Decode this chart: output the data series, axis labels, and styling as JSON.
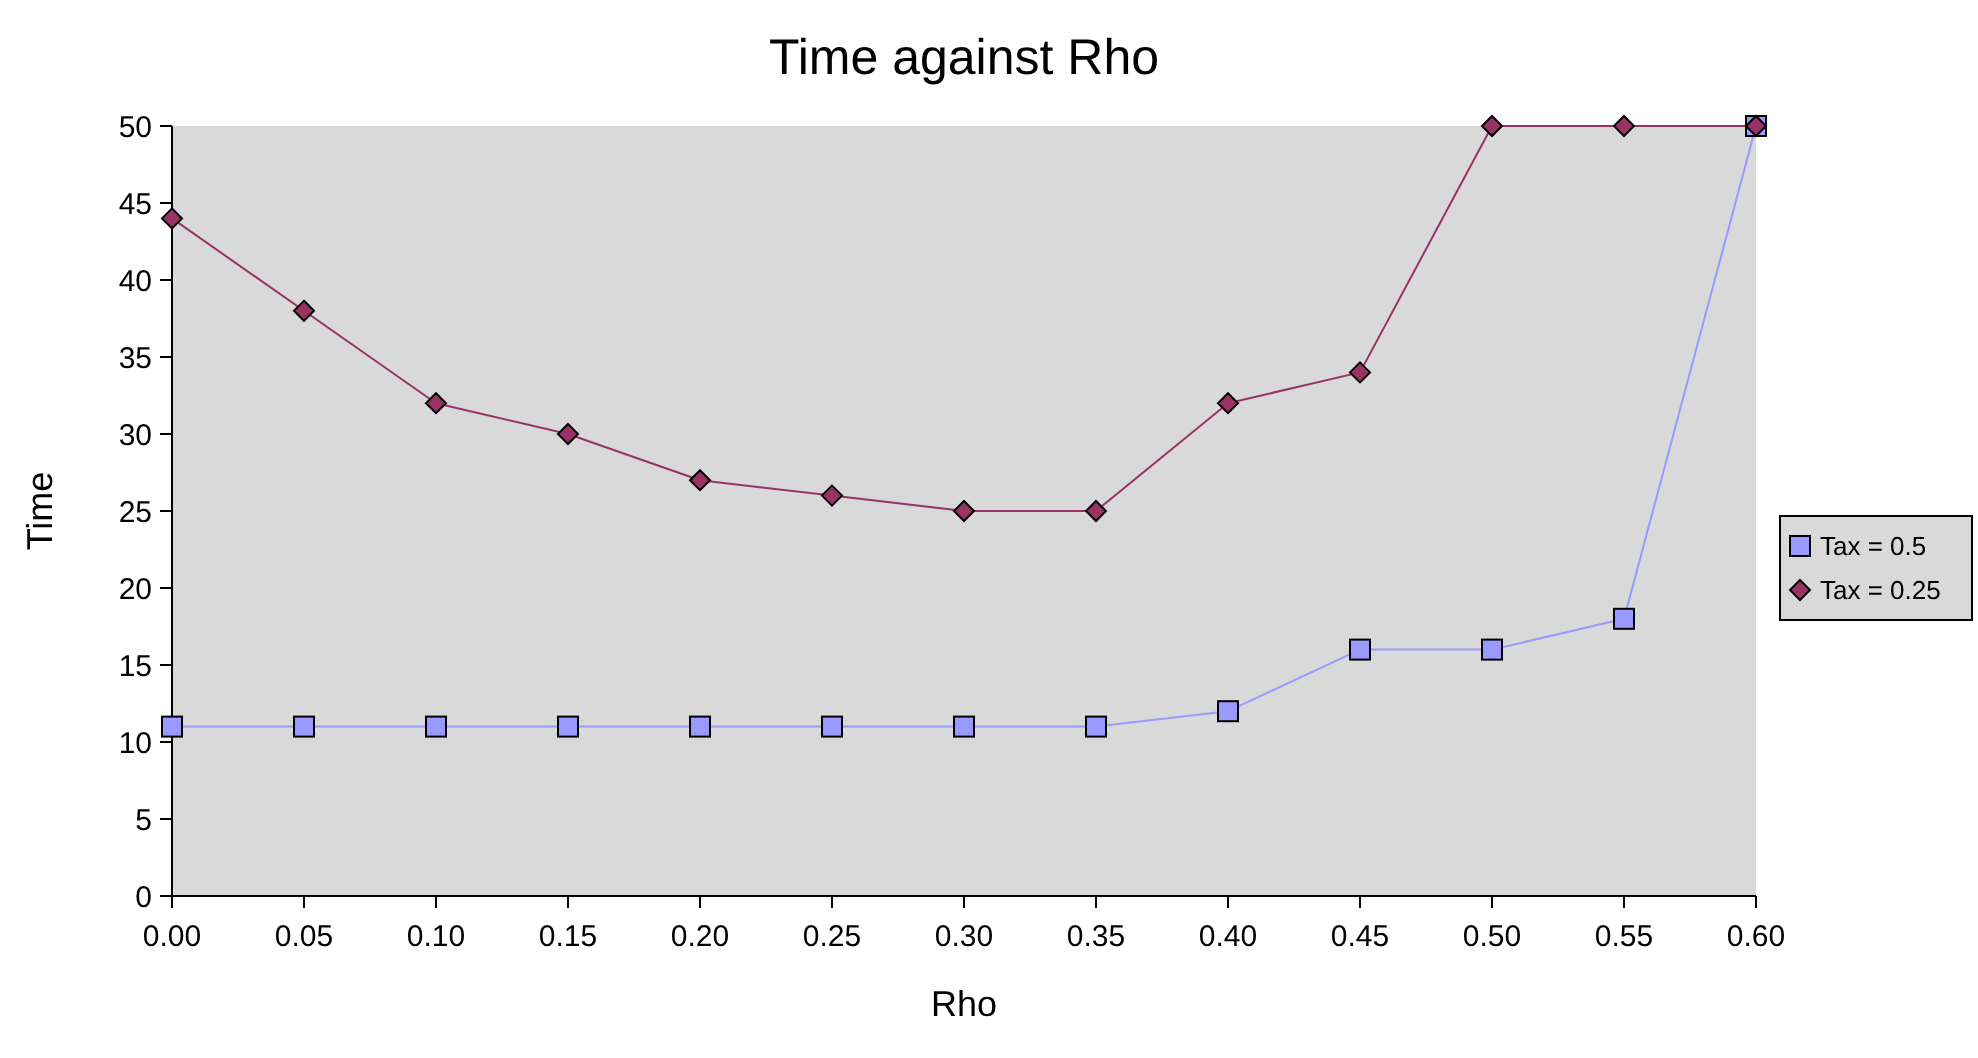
{
  "chart_data": {
    "type": "line",
    "title": "Time against Rho",
    "xlabel": "Rho",
    "ylabel": "Time",
    "x": [
      0,
      0.05,
      0.1,
      0.15,
      0.2,
      0.25,
      0.3,
      0.35,
      0.4,
      0.45,
      0.5,
      0.55,
      0.6
    ],
    "xlim": [
      0,
      0.6
    ],
    "xticks": [
      {
        "value": 0,
        "label": "0.00"
      },
      {
        "value": 0.05,
        "label": "0.05"
      },
      {
        "value": 0.1,
        "label": "0.10"
      },
      {
        "value": 0.15,
        "label": "0.15"
      },
      {
        "value": 0.2,
        "label": "0.20"
      },
      {
        "value": 0.25,
        "label": "0.25"
      },
      {
        "value": 0.3,
        "label": "0.30"
      },
      {
        "value": 0.35,
        "label": "0.35"
      },
      {
        "value": 0.4,
        "label": "0.40"
      },
      {
        "value": 0.45,
        "label": "0.45"
      },
      {
        "value": 0.5,
        "label": "0.50"
      },
      {
        "value": 0.55,
        "label": "0.55"
      },
      {
        "value": 0.6,
        "label": "0.60"
      }
    ],
    "ylim": [
      0,
      50
    ],
    "yticks": [
      0,
      5,
      10,
      15,
      20,
      25,
      30,
      35,
      40,
      45,
      50
    ],
    "grid": false,
    "legend": "right",
    "series": [
      {
        "name": "Tax = 0.5",
        "color": "#9999ff",
        "marker": "square",
        "values": [
          11,
          11,
          11,
          11,
          11,
          11,
          11,
          11,
          12,
          16,
          16,
          18,
          50
        ]
      },
      {
        "name": "Tax = 0.25",
        "color": "#993366",
        "marker": "diamond",
        "values": [
          44,
          38,
          32,
          30,
          27,
          26,
          25,
          25,
          32,
          34,
          50,
          50,
          50
        ]
      }
    ]
  }
}
